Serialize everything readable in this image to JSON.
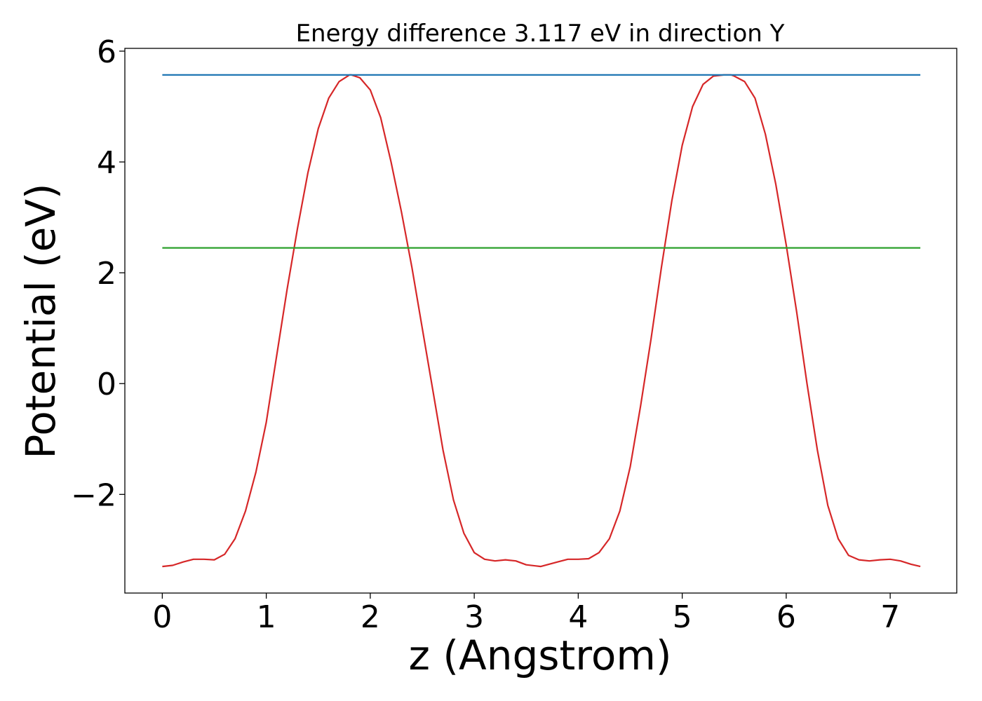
{
  "chart_data": {
    "type": "line",
    "title": "Energy difference 3.117 eV in direction Y",
    "xlabel": "z (Angstrom)",
    "ylabel": "Potential (eV)",
    "xlim": [
      -0.36,
      7.64
    ],
    "ylim": [
      -3.78,
      6.05
    ],
    "xticks": [
      0,
      1,
      2,
      3,
      4,
      5,
      6,
      7
    ],
    "xtick_labels": [
      "0",
      "1",
      "2",
      "3",
      "4",
      "5",
      "6",
      "7"
    ],
    "yticks": [
      -2,
      0,
      2,
      4,
      6
    ],
    "ytick_labels": [
      "−2",
      "0",
      "2",
      "4",
      "6"
    ],
    "grid": false,
    "series": [
      {
        "color": "#d62728",
        "x": [
          0.0,
          0.1,
          0.2,
          0.3,
          0.4,
          0.5,
          0.6,
          0.7,
          0.8,
          0.9,
          1.0,
          1.1,
          1.2,
          1.3,
          1.4,
          1.5,
          1.6,
          1.7,
          1.8,
          1.82,
          1.9,
          2.0,
          2.1,
          2.2,
          2.3,
          2.4,
          2.5,
          2.6,
          2.7,
          2.8,
          2.9,
          3.0,
          3.1,
          3.2,
          3.3,
          3.4,
          3.5,
          3.64,
          3.8,
          3.9,
          4.0,
          4.1,
          4.2,
          4.3,
          4.4,
          4.5,
          4.6,
          4.7,
          4.8,
          4.9,
          5.0,
          5.1,
          5.2,
          5.3,
          5.4,
          5.47,
          5.5,
          5.6,
          5.7,
          5.8,
          5.9,
          6.0,
          6.1,
          6.2,
          6.3,
          6.4,
          6.5,
          6.6,
          6.7,
          6.8,
          6.9,
          7.0,
          7.1,
          7.2,
          7.29
        ],
        "y": [
          -3.3,
          -3.28,
          -3.22,
          -3.17,
          -3.17,
          -3.18,
          -3.08,
          -2.8,
          -2.3,
          -1.6,
          -0.7,
          0.5,
          1.7,
          2.8,
          3.8,
          4.6,
          5.15,
          5.45,
          5.57,
          5.57,
          5.52,
          5.3,
          4.8,
          4.0,
          3.1,
          2.1,
          1.0,
          -0.1,
          -1.2,
          -2.1,
          -2.7,
          -3.05,
          -3.17,
          -3.2,
          -3.18,
          -3.2,
          -3.27,
          -3.3,
          -3.22,
          -3.17,
          -3.17,
          -3.16,
          -3.05,
          -2.8,
          -2.3,
          -1.5,
          -0.4,
          0.8,
          2.1,
          3.3,
          4.3,
          5.0,
          5.4,
          5.55,
          5.57,
          5.57,
          5.55,
          5.45,
          5.15,
          4.5,
          3.6,
          2.5,
          1.3,
          0.0,
          -1.2,
          -2.2,
          -2.8,
          -3.1,
          -3.18,
          -3.2,
          -3.18,
          -3.17,
          -3.2,
          -3.26,
          -3.3
        ]
      },
      {
        "color": "#1f77b4",
        "x": [
          0.0,
          7.29
        ],
        "y": [
          5.57,
          5.57
        ]
      },
      {
        "color": "#2ca02c",
        "x": [
          0.0,
          7.29
        ],
        "y": [
          2.45,
          2.45
        ]
      }
    ]
  }
}
